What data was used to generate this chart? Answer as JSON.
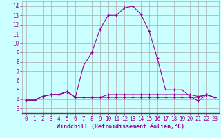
{
  "xlabel": "Windchill (Refroidissement éolien,°C)",
  "x": [
    0,
    1,
    2,
    3,
    4,
    5,
    6,
    7,
    8,
    9,
    10,
    11,
    12,
    13,
    14,
    15,
    16,
    17,
    18,
    19,
    20,
    21,
    22,
    23
  ],
  "y_main": [
    3.9,
    3.9,
    4.3,
    4.5,
    4.5,
    4.8,
    4.2,
    7.6,
    9.0,
    11.5,
    13.0,
    13.0,
    13.8,
    14.0,
    13.1,
    11.3,
    8.4,
    5.0,
    5.0,
    5.0,
    4.3,
    3.8,
    4.5,
    4.2
  ],
  "y_flat1": [
    3.9,
    3.9,
    4.3,
    4.5,
    4.5,
    4.8,
    4.2,
    4.2,
    4.2,
    4.2,
    4.2,
    4.2,
    4.2,
    4.2,
    4.2,
    4.2,
    4.2,
    4.2,
    4.2,
    4.2,
    4.2,
    4.2,
    4.5,
    4.2
  ],
  "y_flat2": [
    3.9,
    3.9,
    4.3,
    4.5,
    4.5,
    4.8,
    4.2,
    4.2,
    4.2,
    4.2,
    4.5,
    4.5,
    4.5,
    4.5,
    4.5,
    4.5,
    4.5,
    4.5,
    4.5,
    4.5,
    4.5,
    4.3,
    4.5,
    4.2
  ],
  "line_color": "#990099",
  "bg_color": "#ccffff",
  "grid_color": "#aaaaaa",
  "xlim": [
    -0.5,
    23.5
  ],
  "ylim": [
    2.5,
    14.5
  ],
  "xticks": [
    0,
    1,
    2,
    3,
    4,
    5,
    6,
    7,
    8,
    9,
    10,
    11,
    12,
    13,
    14,
    15,
    16,
    17,
    18,
    19,
    20,
    21,
    22,
    23
  ],
  "yticks": [
    3,
    4,
    5,
    6,
    7,
    8,
    9,
    10,
    11,
    12,
    13,
    14
  ],
  "tick_fontsize": 5.5,
  "xlabel_fontsize": 6.0,
  "linewidth": 0.8,
  "marker_size": 3.5
}
